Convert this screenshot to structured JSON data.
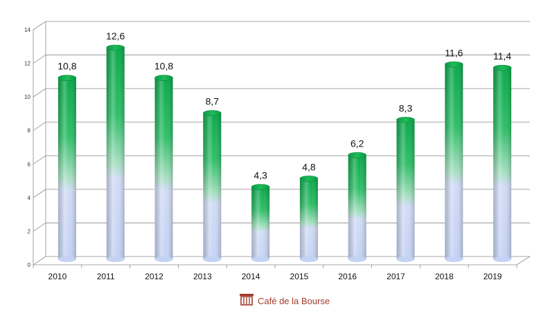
{
  "chart_data": {
    "type": "bar",
    "categories": [
      "2010",
      "2011",
      "2012",
      "2013",
      "2014",
      "2015",
      "2016",
      "2017",
      "2018",
      "2019"
    ],
    "values": [
      10.8,
      12.6,
      10.8,
      8.7,
      4.3,
      4.8,
      6.2,
      8.3,
      11.6,
      11.4
    ],
    "data_labels": [
      "10,8",
      "12,6",
      "10,8",
      "8,7",
      "4,3",
      "4,8",
      "6,2",
      "8,3",
      "11,6",
      "11,4"
    ],
    "yticks": [
      0,
      2,
      4,
      6,
      8,
      10,
      12,
      14
    ],
    "ylim": [
      0,
      14
    ],
    "grid": true,
    "legend": "none",
    "bar_top_color": "#0aa84a",
    "bar_bottom_color": "#c8d6f5"
  },
  "branding": {
    "name": "Café de la Bourse",
    "icon": "basket-icon",
    "color": "#a23a2c"
  }
}
